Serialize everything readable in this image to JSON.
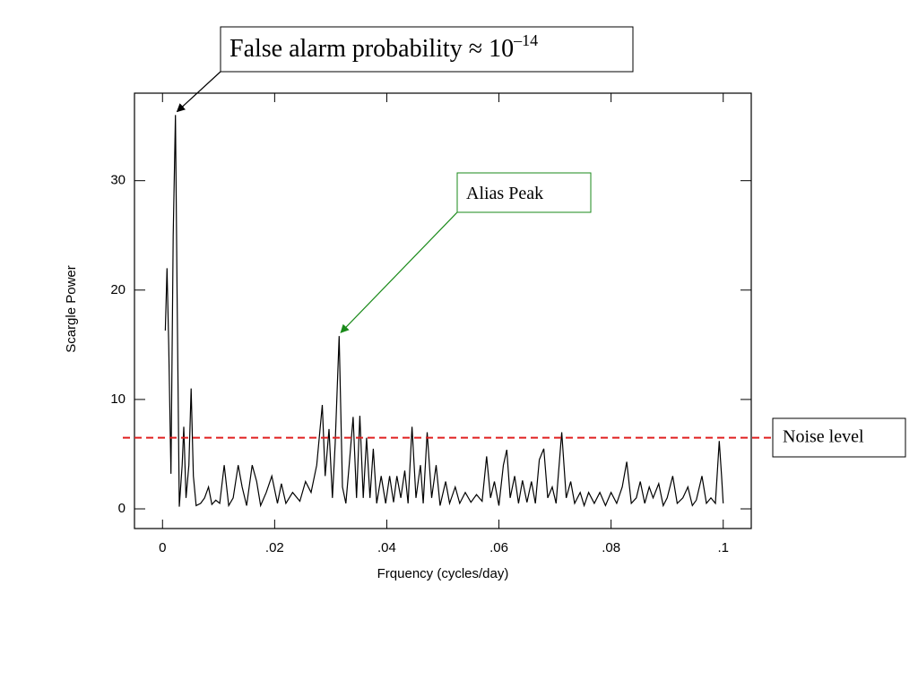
{
  "chart_data": {
    "type": "line",
    "xlabel": "Frquency (cycles/day)",
    "ylabel": "Scargle Power",
    "color": "#000000",
    "x": [
      0.0005,
      0.0008,
      0.0011,
      0.0015,
      0.0019,
      0.0023,
      0.0026,
      0.003,
      0.0035,
      0.0038,
      0.0042,
      0.0047,
      0.0051,
      0.0055,
      0.006,
      0.0068,
      0.0075,
      0.0082,
      0.0088,
      0.0095,
      0.0102,
      0.011,
      0.0118,
      0.0126,
      0.0135,
      0.0142,
      0.015,
      0.016,
      0.0168,
      0.0175,
      0.0185,
      0.0195,
      0.0205,
      0.0212,
      0.022,
      0.0232,
      0.0245,
      0.0255,
      0.0265,
      0.0275,
      0.0285,
      0.029,
      0.0297,
      0.0303,
      0.0308,
      0.0315,
      0.0321,
      0.0327,
      0.0333,
      0.034,
      0.0346,
      0.0352,
      0.0358,
      0.0364,
      0.037,
      0.0376,
      0.0382,
      0.039,
      0.0398,
      0.0405,
      0.0412,
      0.0418,
      0.0425,
      0.0432,
      0.0438,
      0.0445,
      0.0452,
      0.046,
      0.0465,
      0.0472,
      0.048,
      0.0488,
      0.0495,
      0.0505,
      0.0512,
      0.0522,
      0.053,
      0.054,
      0.055,
      0.056,
      0.057,
      0.0578,
      0.0585,
      0.0592,
      0.06,
      0.0608,
      0.0614,
      0.062,
      0.0628,
      0.0635,
      0.0642,
      0.065,
      0.0658,
      0.0665,
      0.0672,
      0.068,
      0.0687,
      0.0695,
      0.0702,
      0.0712,
      0.072,
      0.0728,
      0.0735,
      0.0745,
      0.0752,
      0.076,
      0.077,
      0.078,
      0.079,
      0.08,
      0.081,
      0.082,
      0.0828,
      0.0836,
      0.0845,
      0.0852,
      0.086,
      0.0868,
      0.0875,
      0.0885,
      0.0893,
      0.09,
      0.091,
      0.0918,
      0.0928,
      0.0937,
      0.0945,
      0.0952,
      0.0962,
      0.097,
      0.0978,
      0.0986,
      0.0993,
      0.0997,
      0.1
    ],
    "values": [
      16.3,
      22,
      15,
      3.2,
      25,
      36,
      20,
      0.2,
      4,
      7.5,
      1,
      4,
      11,
      3,
      0.3,
      0.5,
      1,
      2,
      0.4,
      0.8,
      0.5,
      4,
      0.3,
      1,
      4,
      2,
      0.3,
      4,
      2.5,
      0.3,
      1.5,
      3,
      0.5,
      2.3,
      0.5,
      1.5,
      0.7,
      2.5,
      1.5,
      4,
      9.5,
      3,
      7.3,
      1,
      6,
      15.8,
      2,
      0.5,
      4,
      8.4,
      1,
      8.5,
      1,
      6.5,
      1,
      5.5,
      0.5,
      3,
      0.5,
      3,
      0.6,
      3,
      1,
      3.5,
      0.5,
      7.5,
      1,
      4,
      0.5,
      7,
      1,
      4,
      0.3,
      2.5,
      0.5,
      2,
      0.5,
      1.5,
      0.6,
      1.3,
      0.7,
      4.8,
      1,
      2.5,
      0.3,
      4,
      5.4,
      1,
      3,
      0.5,
      2.6,
      0.6,
      2.5,
      0.5,
      4.5,
      5.5,
      1,
      2,
      0.5,
      7,
      1,
      2.5,
      0.5,
      1.5,
      0.3,
      1.5,
      0.5,
      1.5,
      0.3,
      1.5,
      0.5,
      2,
      4.3,
      0.5,
      1,
      2.5,
      0.5,
      2,
      1,
      2.3,
      0.3,
      1,
      3,
      0.5,
      1,
      2,
      0.3,
      0.8,
      3,
      0.5,
      1,
      0.5,
      6.2,
      3,
      0.5
    ],
    "xlim": [
      -0.005,
      0.105
    ],
    "ylim": [
      -1.8,
      38
    ],
    "xticks": [
      0,
      {
        "value": 0.02,
        "label": ".02"
      },
      {
        "value": 0.04,
        "label": ".04"
      },
      {
        "value": 0.06,
        "label": ".06"
      },
      {
        "value": 0.08,
        "label": ".08"
      },
      {
        "value": 0.1,
        "label": ".1"
      }
    ],
    "yticks": [
      0,
      10,
      20,
      30
    ],
    "noise_level": {
      "value": 6.5,
      "label": "Noise level",
      "color": "#e02020"
    },
    "annotations": [
      {
        "text": "False alarm probability ≈ 10",
        "superscript": "–14",
        "x": 0.0023,
        "y": 36,
        "color": "#000000"
      },
      {
        "text": "Alias Peak",
        "x": 0.0315,
        "y": 15.8,
        "color": "#1a8a1a"
      }
    ]
  }
}
